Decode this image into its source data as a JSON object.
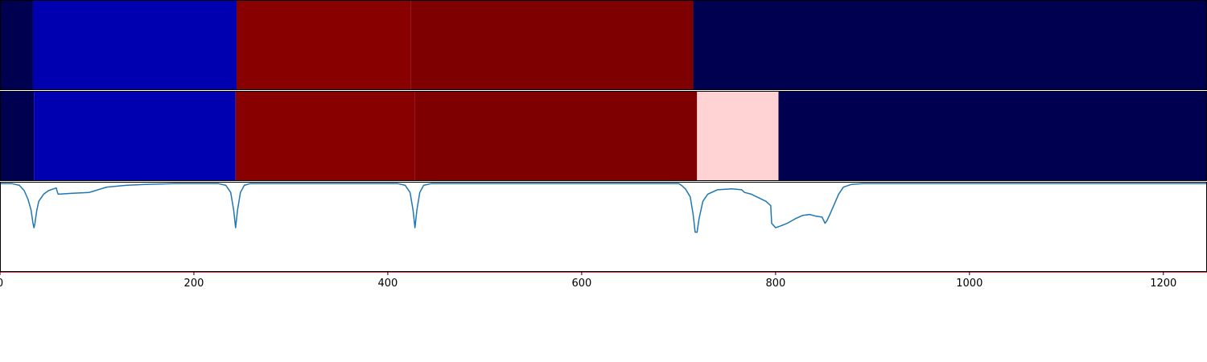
{
  "chart_data": {
    "type": "heatmap",
    "xlim": [
      0,
      1245
    ],
    "x_ticks": [
      {
        "value": 0,
        "label": "0"
      },
      {
        "value": 200,
        "label": "200"
      },
      {
        "value": 400,
        "label": "400"
      },
      {
        "value": 600,
        "label": "600"
      },
      {
        "value": 800,
        "label": "800"
      },
      {
        "value": 1000,
        "label": "1000"
      },
      {
        "value": 1200,
        "label": "1200"
      }
    ],
    "segment_rows": [
      {
        "segments": [
          {
            "start": 0,
            "end": 34,
            "color": "#000050"
          },
          {
            "start": 34,
            "end": 244,
            "color": "#0000b0"
          },
          {
            "start": 244,
            "end": 424,
            "color": "#880000"
          },
          {
            "start": 424,
            "end": 715,
            "color": "#7f0000"
          },
          {
            "start": 715,
            "end": 1245,
            "color": "#000050"
          }
        ]
      },
      {
        "segments": [
          {
            "start": 0,
            "end": 35,
            "color": "#000050"
          },
          {
            "start": 35,
            "end": 243,
            "color": "#0000b0"
          },
          {
            "start": 243,
            "end": 428,
            "color": "#880000"
          },
          {
            "start": 428,
            "end": 719,
            "color": "#7f0000"
          },
          {
            "start": 719,
            "end": 803,
            "color": "#ffd3d3"
          },
          {
            "start": 803,
            "end": 1245,
            "color": "#000050"
          }
        ]
      }
    ],
    "line_series": {
      "color": "#1f77b4",
      "ylim": [
        -1,
        0.02
      ],
      "points": [
        [
          0,
          0
        ],
        [
          12,
          0
        ],
        [
          20,
          -0.02
        ],
        [
          25,
          -0.08
        ],
        [
          29,
          -0.18
        ],
        [
          32,
          -0.3
        ],
        [
          34,
          -0.45
        ],
        [
          35,
          -0.5
        ],
        [
          36,
          -0.45
        ],
        [
          38,
          -0.3
        ],
        [
          40,
          -0.2
        ],
        [
          45,
          -0.12
        ],
        [
          50,
          -0.08
        ],
        [
          55,
          -0.06
        ],
        [
          58,
          -0.05
        ],
        [
          59,
          -0.09
        ],
        [
          60,
          -0.12
        ],
        [
          75,
          -0.11
        ],
        [
          92,
          -0.1
        ],
        [
          95,
          -0.09
        ],
        [
          110,
          -0.04
        ],
        [
          130,
          -0.02
        ],
        [
          150,
          -0.01
        ],
        [
          180,
          0
        ],
        [
          225,
          0
        ],
        [
          233,
          -0.02
        ],
        [
          238,
          -0.1
        ],
        [
          241,
          -0.3
        ],
        [
          243,
          -0.5
        ],
        [
          245,
          -0.3
        ],
        [
          248,
          -0.1
        ],
        [
          252,
          -0.02
        ],
        [
          258,
          0
        ],
        [
          410,
          0
        ],
        [
          418,
          -0.02
        ],
        [
          423,
          -0.1
        ],
        [
          426,
          -0.3
        ],
        [
          428,
          -0.5
        ],
        [
          430,
          -0.3
        ],
        [
          433,
          -0.1
        ],
        [
          437,
          -0.02
        ],
        [
          445,
          0
        ],
        [
          700,
          0
        ],
        [
          703,
          -0.02
        ],
        [
          707,
          -0.06
        ],
        [
          712,
          -0.15
        ],
        [
          715,
          -0.35
        ],
        [
          717,
          -0.55
        ],
        [
          719,
          -0.55
        ],
        [
          721,
          -0.4
        ],
        [
          725,
          -0.2
        ],
        [
          730,
          -0.12
        ],
        [
          740,
          -0.07
        ],
        [
          755,
          -0.06
        ],
        [
          765,
          -0.07
        ],
        [
          768,
          -0.1
        ],
        [
          775,
          -0.12
        ],
        [
          790,
          -0.2
        ],
        [
          795,
          -0.25
        ],
        [
          796,
          -0.45
        ],
        [
          800,
          -0.5
        ],
        [
          805,
          -0.48
        ],
        [
          812,
          -0.45
        ],
        [
          820,
          -0.4
        ],
        [
          828,
          -0.36
        ],
        [
          835,
          -0.35
        ],
        [
          842,
          -0.37
        ],
        [
          848,
          -0.38
        ],
        [
          851,
          -0.45
        ],
        [
          853,
          -0.42
        ],
        [
          856,
          -0.35
        ],
        [
          860,
          -0.25
        ],
        [
          865,
          -0.12
        ],
        [
          870,
          -0.04
        ],
        [
          878,
          -0.01
        ],
        [
          890,
          0
        ],
        [
          1245,
          0
        ]
      ]
    },
    "threshold_line": {
      "y": -1,
      "color": "#e00000"
    }
  }
}
